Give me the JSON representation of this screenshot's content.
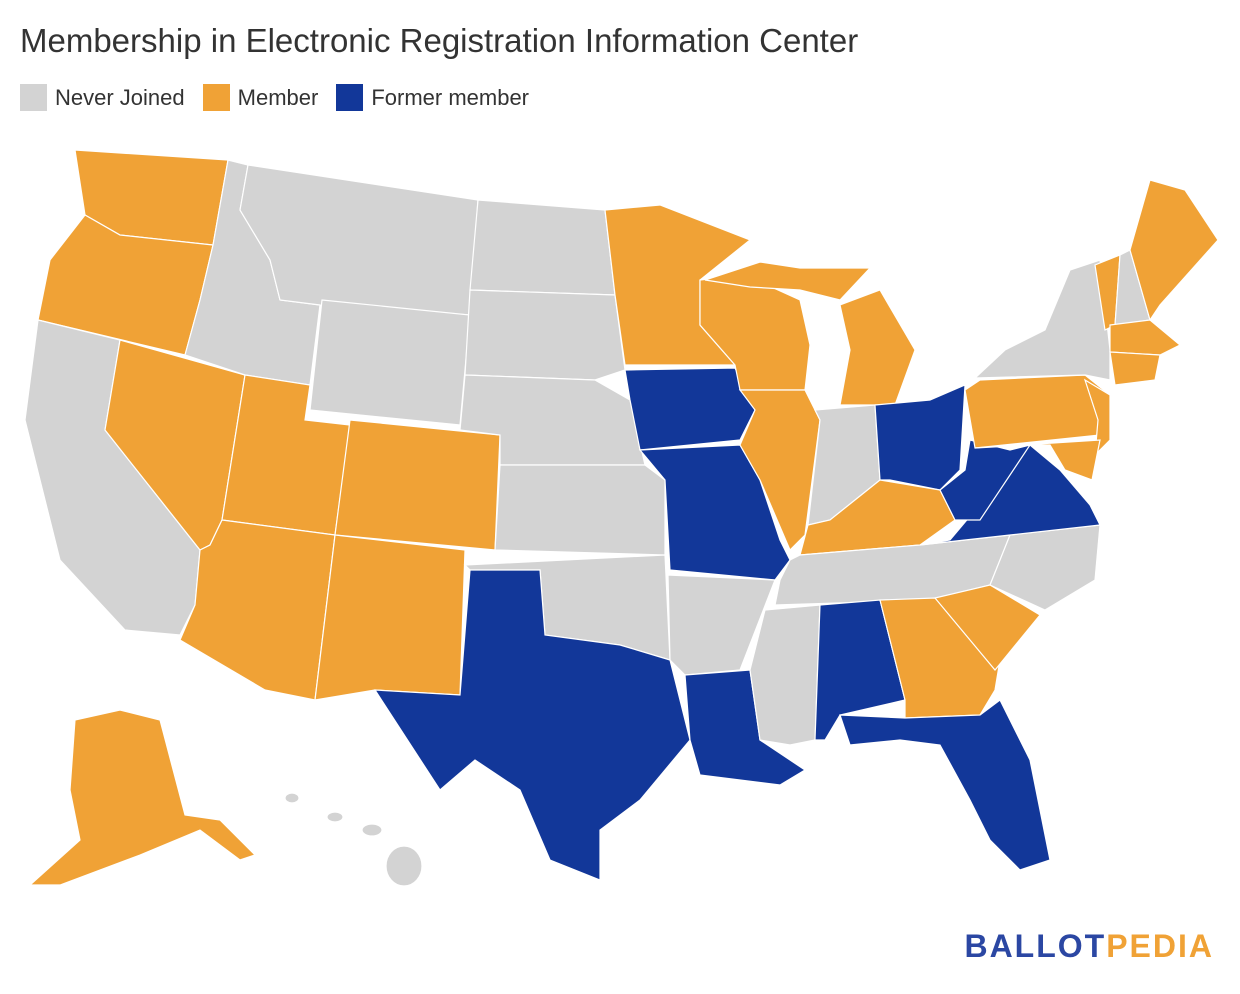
{
  "header": {
    "title": "Membership in Electronic Registration Information Center"
  },
  "legend": [
    {
      "label": "Never Joined",
      "color": "#d3d3d3"
    },
    {
      "label": "Member",
      "color": "#f0a236"
    },
    {
      "label": "Former member",
      "color": "#123799"
    }
  ],
  "logo": {
    "part1": "BALLOT",
    "part2": "PEDIA",
    "color1": "#2b47a3",
    "color2": "#f0a236"
  }
}
